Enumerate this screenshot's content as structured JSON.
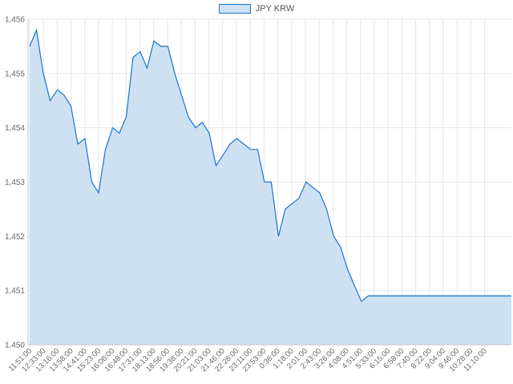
{
  "legend": {
    "label": "JPY KRW",
    "swatch_icon": "legend-swatch"
  },
  "colors": {
    "line": "#1b74d0",
    "fill": "#cde1f3",
    "grid": "#e6e6e6"
  },
  "chart_data": {
    "type": "area",
    "title": "",
    "xlabel": "",
    "ylabel": "",
    "series": [
      {
        "name": "JPY KRW"
      }
    ],
    "ylim": [
      1450,
      1456
    ],
    "y_ticks": [
      "1,450",
      "1,451",
      "1,452",
      "1,453",
      "1,454",
      "1,455",
      "1,456"
    ],
    "x_ticks": [
      "11:51:00",
      "12:33:00",
      "13:16:00",
      "13:58:00",
      "14:41:00",
      "15:23:00",
      "16:06:00",
      "16:48:00",
      "17:31:00",
      "18:13:00",
      "18:56:00",
      "19:38:00",
      "20:21:00",
      "21:03:00",
      "21:46:00",
      "22:28:00",
      "23:11:00",
      "23:53:00",
      "0:36:00",
      "1:18:00",
      "2:01:00",
      "2:43:00",
      "3:26:00",
      "4:08:00",
      "4:51:00",
      "5:33:00",
      "6:15:00",
      "6:58:00",
      "7:40:00",
      "8:22:00",
      "9:04:00",
      "9:46:00",
      "10:28:00",
      "11:10:00"
    ],
    "x": [
      "11:51:00",
      "12:12:00",
      "12:33:00",
      "12:54:00",
      "13:16:00",
      "13:37:00",
      "13:58:00",
      "14:19:00",
      "14:41:00",
      "15:02:00",
      "15:23:00",
      "15:44:00",
      "16:06:00",
      "16:27:00",
      "16:48:00",
      "17:09:00",
      "17:31:00",
      "17:52:00",
      "18:13:00",
      "18:34:00",
      "18:56:00",
      "19:17:00",
      "19:38:00",
      "19:59:00",
      "20:21:00",
      "20:42:00",
      "21:03:00",
      "21:24:00",
      "21:46:00",
      "22:07:00",
      "22:28:00",
      "22:49:00",
      "23:11:00",
      "23:32:00",
      "23:53:00",
      "0:14:00",
      "0:36:00",
      "0:57:00",
      "1:18:00",
      "1:39:00",
      "2:01:00",
      "2:22:00",
      "2:43:00",
      "3:04:00",
      "3:26:00",
      "3:47:00",
      "4:08:00",
      "4:29:00",
      "4:51:00",
      "5:12:00",
      "5:33:00",
      "5:54:00",
      "6:15:00",
      "11:10:00",
      "11:51:00"
    ],
    "values": [
      1455.5,
      1455.8,
      1455.0,
      1454.5,
      1454.7,
      1454.6,
      1454.4,
      1453.7,
      1453.8,
      1453.0,
      1452.8,
      1453.6,
      1454.0,
      1453.9,
      1454.2,
      1455.3,
      1455.4,
      1455.1,
      1455.6,
      1455.5,
      1455.5,
      1455.0,
      1454.6,
      1454.2,
      1454.0,
      1454.1,
      1453.9,
      1453.3,
      1453.5,
      1453.7,
      1453.8,
      1453.7,
      1453.6,
      1453.6,
      1453.0,
      1453.0,
      1452.0,
      1452.5,
      1452.6,
      1452.7,
      1453.0,
      1452.9,
      1452.8,
      1452.5,
      1452.0,
      1451.8,
      1451.4,
      1451.1,
      1450.8,
      1450.9,
      1450.9,
      1450.9,
      1450.9,
      1450.9,
      1450.9
    ],
    "grid": true,
    "legend_position": "top-center"
  }
}
